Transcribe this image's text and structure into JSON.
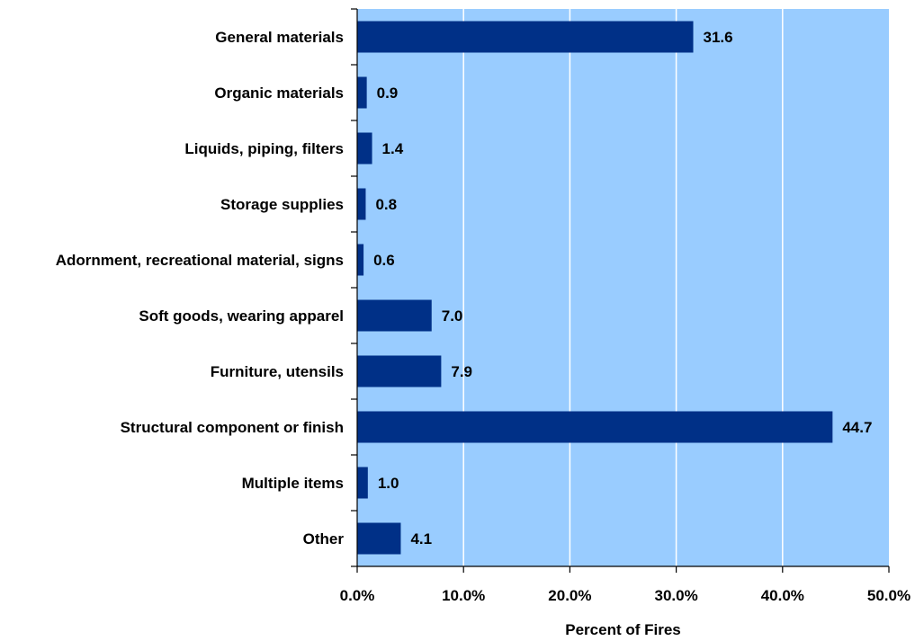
{
  "chart_data": {
    "type": "bar",
    "orientation": "horizontal",
    "categories": [
      "General materials",
      "Organic materials",
      "Liquids, piping, filters",
      "Storage supplies",
      "Adornment, recreational material, signs",
      "Soft goods, wearing apparel",
      "Furniture, utensils",
      "Structural component or finish",
      "Multiple items",
      "Other"
    ],
    "values": [
      31.6,
      0.9,
      1.4,
      0.8,
      0.6,
      7.0,
      7.9,
      44.7,
      1.0,
      4.1
    ],
    "value_labels": [
      "31.6",
      "0.9",
      "1.4",
      "0.8",
      "0.6",
      "7.0",
      "7.9",
      "44.7",
      "1.0",
      "4.1"
    ],
    "xlabel": "Percent of Fires",
    "ylabel": "",
    "xlim": [
      0,
      50
    ],
    "xticks": [
      "0.0%",
      "10.0%",
      "20.0%",
      "30.0%",
      "40.0%",
      "50.0%"
    ],
    "grid": "vertical gridlines on",
    "legend": "none"
  },
  "colors": {
    "plot_background": "#99ccff",
    "bar": "#003087",
    "gridline": "#ffffff",
    "axis": "#000000"
  }
}
